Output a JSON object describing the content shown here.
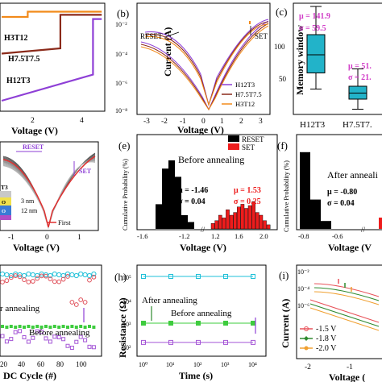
{
  "panels": {
    "a": {
      "xlabel": "Voltage (V)",
      "ticks_x": [
        "2",
        "4"
      ],
      "series": [
        {
          "name": "H3T12",
          "color": "#f28a1a"
        },
        {
          "name": "H7.5T7.5",
          "color": "#8b2a1a"
        },
        {
          "name": "H12T3",
          "color": "#8e3fd6"
        }
      ]
    },
    "b": {
      "letter": "(b)",
      "xlabel": "Voltage (V)",
      "ylabel": "Current (A)",
      "ticks_x": [
        "-3",
        "-2",
        "-1",
        "0",
        "1",
        "2",
        "3"
      ],
      "ticks_y": [
        "10⁻²",
        "10⁻⁴",
        "10⁻⁶",
        "10⁻⁸"
      ],
      "ann_reset": "RESET",
      "ann_set": "SET",
      "legend": [
        {
          "name": "H12T3",
          "color": "#8e3fd6"
        },
        {
          "name": "H7.5T7.5",
          "color": "#8b2a1a"
        },
        {
          "name": "H3T12",
          "color": "#f28a1a"
        }
      ]
    },
    "c": {
      "letter": "(c)",
      "ylabel": "Memory window",
      "ticks_y": [
        "100",
        "50"
      ],
      "cats": [
        "H12T3",
        "H7.5T7."
      ],
      "stat1_mu": "μ = 141.9",
      "stat1_sigma": "σ = 59.5",
      "stat2_mu": "μ = 51.",
      "stat2_sigma": "σ = 21."
    },
    "d": {
      "xlabel": "Voltage (V)",
      "ticks_x": [
        "-1",
        "0",
        "1"
      ],
      "ann_reset": "RESET",
      "ann_set": "SET",
      "layer_t3": "T3",
      "layer_3nm": "3 nm",
      "layer_12nm": "12 nm",
      "layer_o": "O",
      "layer_o2": "O",
      "legend_first": "First"
    },
    "e": {
      "letter": "(e)",
      "xlabel": "Voltage (V)",
      "ylabel": "Cumulative Probability (%)",
      "ticks_x": [
        "-1.6",
        "-1.2",
        "1.2",
        "1.6",
        "2.0"
      ],
      "title": "Before annealing",
      "legend_reset": "RESET",
      "legend_set": "SET",
      "mu_reset": "μ  = -1.46",
      "sigma_reset": "σ  = 0.04",
      "mu_set": "μ  = 1.53",
      "sigma_set": "σ  = 0.25"
    },
    "f": {
      "letter": "(f)",
      "xlabel": "Voltage (V",
      "ylabel": "Cumulative Probability (%)",
      "ticks_x": [
        "-0.8",
        "-0.6"
      ],
      "title": "After anneali",
      "mu_reset": "μ  = -0.80",
      "sigma_reset": "σ  = 0.04"
    },
    "g": {
      "xlabel": "DC Cycle (#)",
      "ticks_x": [
        "20",
        "40",
        "60",
        "80",
        "100"
      ],
      "ann_after": "r annealing",
      "ann_before": "Before annealing"
    },
    "h": {
      "letter": "(h)",
      "xlabel": "Time (s)",
      "ylabel": "Resistance (Ω)",
      "ticks_y": [
        "10⁵",
        "10⁴",
        "10³",
        "10²"
      ],
      "ticks_x": [
        "10⁰",
        "10¹",
        "10²",
        "10³",
        "10⁴"
      ],
      "ann_after": "After annealing",
      "ann_before": "Before annealing"
    },
    "i": {
      "letter": "(i)",
      "xlabel": "Voltage (",
      "ylabel": "Current (A)",
      "ticks_y": [
        "10⁻²",
        "10⁻⁴",
        "10⁻⁶"
      ],
      "ticks_x": [
        "-2",
        "-1"
      ],
      "legend": [
        {
          "name": "-1.5 V",
          "color": "#e8535a"
        },
        {
          "name": "-1.8 V",
          "color": "#2f8a2f"
        },
        {
          "name": "-2.0 V",
          "color": "#f0a030"
        }
      ]
    }
  },
  "chart_data": [
    {
      "type": "line",
      "panel": "a",
      "xlabel": "Voltage (V)",
      "series": [
        {
          "name": "H3T12",
          "x": [
            0,
            1.2,
            1.2,
            4.6
          ],
          "y": [
            0.9,
            0.9,
            0.95,
            0.95
          ]
        },
        {
          "name": "H7.5T7.5",
          "x": [
            0,
            2.7,
            2.7,
            4.6
          ],
          "y": [
            0.55,
            0.6,
            0.92,
            0.92
          ]
        },
        {
          "name": "H12T3",
          "x": [
            0,
            4.2,
            4.2,
            4.6
          ],
          "y": [
            0.1,
            0.35,
            0.88,
            0.88
          ]
        }
      ]
    },
    {
      "type": "line",
      "panel": "b",
      "xlabel": "Voltage (V)",
      "ylabel": "Current (A)",
      "yscale": "log",
      "series": [
        {
          "name": "H12T3"
        },
        {
          "name": "H7.5T7.5"
        },
        {
          "name": "H3T12"
        }
      ]
    },
    {
      "type": "box",
      "panel": "c",
      "ylabel": "Memory window",
      "categories": [
        "H12T3",
        "H7.5T7."
      ],
      "boxes": [
        {
          "min": 55,
          "q1": 95,
          "median": 140,
          "q3": 190,
          "max": 260
        },
        {
          "min": 5,
          "q1": 30,
          "median": 45,
          "q3": 62,
          "max": 105
        }
      ]
    },
    {
      "type": "bar",
      "panel": "e",
      "xlabel": "Voltage (V)",
      "ylabel": "Cumulative Probability (%)",
      "series": [
        {
          "name": "RESET",
          "x": [
            -1.55,
            -1.5,
            -1.45,
            -1.4,
            -1.35,
            -1.3
          ],
          "y": [
            0.18,
            0.44,
            0.5,
            0.38,
            0.1,
            0.05
          ]
        },
        {
          "name": "SET",
          "x": [
            1.15,
            1.2,
            1.25,
            1.3,
            1.35,
            1.4,
            1.45,
            1.5,
            1.55,
            1.6,
            1.65,
            1.7,
            1.75,
            1.8,
            1.85,
            1.9
          ],
          "y": [
            0.04,
            0.06,
            0.1,
            0.08,
            0.14,
            0.1,
            0.12,
            0.16,
            0.18,
            0.15,
            0.17,
            0.2,
            0.12,
            0.1,
            0.06,
            0.03
          ]
        }
      ]
    },
    {
      "type": "bar",
      "panel": "f",
      "xlabel": "Voltage (V",
      "ylabel": "Cumulative Probability (%)",
      "series": [
        {
          "name": "RESET",
          "x": [
            -0.8,
            -0.7,
            -0.6
          ],
          "y": [
            0.68,
            0.26,
            0.07
          ]
        }
      ]
    },
    {
      "type": "scatter",
      "panel": "g",
      "xlabel": "DC Cycle (#)",
      "x_range": [
        0,
        100
      ]
    },
    {
      "type": "line",
      "panel": "h",
      "xlabel": "Time (s)",
      "ylabel": "Resistance (Ω)",
      "xscale": "log",
      "yscale": "log",
      "series": [
        {
          "x": [
            1,
            10,
            100,
            1000,
            10000
          ],
          "y": [
            100000,
            100000,
            100000,
            100000,
            100000
          ]
        },
        {
          "x": [
            1,
            10,
            100,
            1000,
            10000
          ],
          "y": [
            1000,
            1000,
            1000,
            1000,
            1000
          ]
        },
        {
          "x": [
            1,
            10,
            100,
            1000,
            10000
          ],
          "y": [
            150,
            150,
            150,
            150,
            150
          ]
        }
      ]
    },
    {
      "type": "line",
      "panel": "i",
      "xlabel": "Voltage (",
      "ylabel": "Current (A)",
      "yscale": "log",
      "series": [
        {
          "name": "-1.5 V"
        },
        {
          "name": "-1.8 V"
        },
        {
          "name": "-2.0 V"
        }
      ]
    }
  ]
}
